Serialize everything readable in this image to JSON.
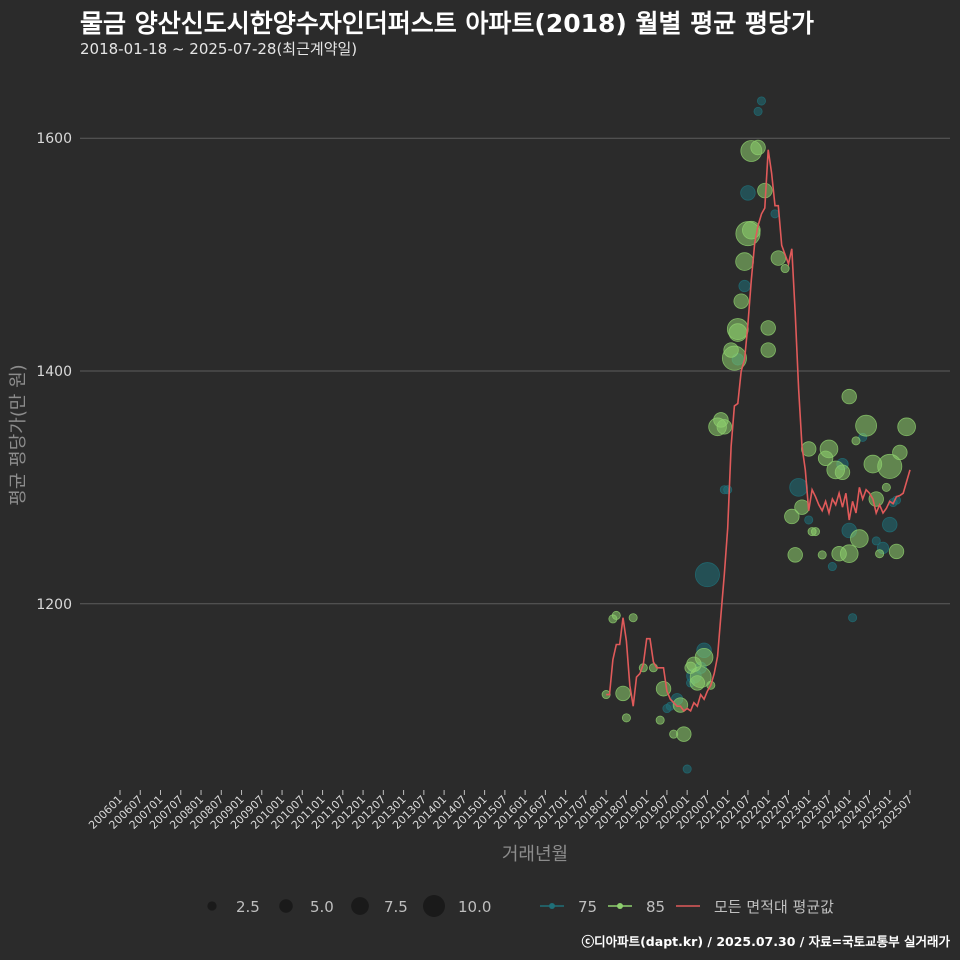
{
  "header": {
    "title": "물금 양산신도시한양수자인더퍼스트 아파트(2018) 월별 평균 평당가",
    "subtitle": "2018-01-18 ~ 2025-07-28(최근계약일)"
  },
  "caption": "ⓒ디아파트(dapt.kr) / 2025.07.30 / 자료=국토교통부 실거래가",
  "colors": {
    "background": "#2b2b2b",
    "grid": "#5c5c5c",
    "series_75": "#1f6f78",
    "series_85": "#8ecf6e",
    "average_line": "#e05a5a",
    "size_legend": "#1a1a1a"
  },
  "chart_data": {
    "type": "scatter",
    "xlabel": "거래년월",
    "ylabel": "평균 평당가(만 원)",
    "ylim": [
      1040,
      1650
    ],
    "yticks": [
      1200,
      1400,
      1600
    ],
    "grid": true,
    "legend_position": "bottom",
    "x_ticks": [
      "200601",
      "200607",
      "200701",
      "200707",
      "200801",
      "200807",
      "200901",
      "200907",
      "201001",
      "201007",
      "201101",
      "201107",
      "201201",
      "201207",
      "201301",
      "201307",
      "201401",
      "201407",
      "201501",
      "201507",
      "201601",
      "201607",
      "201701",
      "201707",
      "201801",
      "201807",
      "201901",
      "201907",
      "202001",
      "202007",
      "202101",
      "202107",
      "202201",
      "202207",
      "202301",
      "202307",
      "202401",
      "202407",
      "202501",
      "202507"
    ],
    "size_legend": {
      "labels": [
        "2.5",
        "5.0",
        "7.5",
        "10.0"
      ],
      "values": [
        2.5,
        5.0,
        7.5,
        10.0
      ]
    },
    "series": [
      {
        "name": "75",
        "type": "scatter",
        "points": [
          {
            "x": "2019-07",
            "y": 1110,
            "size": 1
          },
          {
            "x": "2019-08",
            "y": 1112,
            "size": 1
          },
          {
            "x": "2019-10",
            "y": 1118,
            "size": 2
          },
          {
            "x": "2020-01",
            "y": 1058,
            "size": 1
          },
          {
            "x": "2020-02",
            "y": 1132,
            "size": 1
          },
          {
            "x": "2020-03",
            "y": 1138,
            "size": 3
          },
          {
            "x": "2020-05",
            "y": 1145,
            "size": 2
          },
          {
            "x": "2020-06",
            "y": 1160,
            "size": 3
          },
          {
            "x": "2020-07",
            "y": 1225,
            "size": 6
          },
          {
            "x": "2020-12",
            "y": 1298,
            "size": 1
          },
          {
            "x": "2021-01",
            "y": 1298,
            "size": 1
          },
          {
            "x": "2021-04",
            "y": 1410,
            "size": 2
          },
          {
            "x": "2021-06",
            "y": 1473,
            "size": 2
          },
          {
            "x": "2021-07",
            "y": 1553,
            "size": 3
          },
          {
            "x": "2021-10",
            "y": 1623,
            "size": 1
          },
          {
            "x": "2021-11",
            "y": 1632,
            "size": 1
          },
          {
            "x": "2022-03",
            "y": 1535,
            "size": 1
          },
          {
            "x": "2022-10",
            "y": 1300,
            "size": 4
          },
          {
            "x": "2023-01",
            "y": 1272,
            "size": 1
          },
          {
            "x": "2023-08",
            "y": 1232,
            "size": 1
          },
          {
            "x": "2023-11",
            "y": 1320,
            "size": 2
          },
          {
            "x": "2024-01",
            "y": 1263,
            "size": 3
          },
          {
            "x": "2024-02",
            "y": 1188,
            "size": 1
          },
          {
            "x": "2024-05",
            "y": 1343,
            "size": 1
          },
          {
            "x": "2024-09",
            "y": 1254,
            "size": 1
          },
          {
            "x": "2024-11",
            "y": 1248,
            "size": 2
          },
          {
            "x": "2025-01",
            "y": 1268,
            "size": 3
          },
          {
            "x": "2025-02",
            "y": 1287,
            "size": 1
          },
          {
            "x": "2025-03",
            "y": 1289,
            "size": 1
          }
        ]
      },
      {
        "name": "85",
        "type": "scatter",
        "points": [
          {
            "x": "2018-01",
            "y": 1122,
            "size": 1
          },
          {
            "x": "2018-03",
            "y": 1187,
            "size": 1
          },
          {
            "x": "2018-04",
            "y": 1190,
            "size": 1
          },
          {
            "x": "2018-06",
            "y": 1123,
            "size": 3
          },
          {
            "x": "2018-07",
            "y": 1102,
            "size": 1
          },
          {
            "x": "2018-09",
            "y": 1188,
            "size": 1
          },
          {
            "x": "2018-12",
            "y": 1145,
            "size": 1
          },
          {
            "x": "2019-03",
            "y": 1145,
            "size": 1
          },
          {
            "x": "2019-05",
            "y": 1100,
            "size": 1
          },
          {
            "x": "2019-06",
            "y": 1127,
            "size": 3
          },
          {
            "x": "2019-09",
            "y": 1088,
            "size": 1
          },
          {
            "x": "2019-11",
            "y": 1113,
            "size": 3
          },
          {
            "x": "2019-12",
            "y": 1088,
            "size": 3
          },
          {
            "x": "2020-02",
            "y": 1145,
            "size": 2
          },
          {
            "x": "2020-03",
            "y": 1148,
            "size": 3
          },
          {
            "x": "2020-04",
            "y": 1132,
            "size": 3
          },
          {
            "x": "2020-05",
            "y": 1137,
            "size": 5
          },
          {
            "x": "2020-06",
            "y": 1154,
            "size": 4
          },
          {
            "x": "2020-08",
            "y": 1130,
            "size": 1
          },
          {
            "x": "2020-10",
            "y": 1352,
            "size": 4
          },
          {
            "x": "2020-11",
            "y": 1358,
            "size": 3
          },
          {
            "x": "2020-12",
            "y": 1352,
            "size": 3
          },
          {
            "x": "2021-02",
            "y": 1418,
            "size": 3
          },
          {
            "x": "2021-03",
            "y": 1411,
            "size": 6
          },
          {
            "x": "2021-04",
            "y": 1433,
            "size": 4
          },
          {
            "x": "2021-04",
            "y": 1436,
            "size": 5
          },
          {
            "x": "2021-05",
            "y": 1460,
            "size": 3
          },
          {
            "x": "2021-06",
            "y": 1494,
            "size": 4
          },
          {
            "x": "2021-07",
            "y": 1518,
            "size": 6
          },
          {
            "x": "2021-08",
            "y": 1521,
            "size": 4
          },
          {
            "x": "2021-08",
            "y": 1589,
            "size": 5
          },
          {
            "x": "2021-10",
            "y": 1592,
            "size": 3
          },
          {
            "x": "2021-12",
            "y": 1555,
            "size": 3
          },
          {
            "x": "2022-01",
            "y": 1418,
            "size": 3
          },
          {
            "x": "2022-01",
            "y": 1437,
            "size": 3
          },
          {
            "x": "2022-04",
            "y": 1497,
            "size": 3
          },
          {
            "x": "2022-06",
            "y": 1488,
            "size": 1
          },
          {
            "x": "2022-09",
            "y": 1242,
            "size": 3
          },
          {
            "x": "2022-08",
            "y": 1275,
            "size": 3
          },
          {
            "x": "2022-11",
            "y": 1283,
            "size": 3
          },
          {
            "x": "2023-01",
            "y": 1333,
            "size": 3
          },
          {
            "x": "2023-02",
            "y": 1262,
            "size": 1
          },
          {
            "x": "2023-03",
            "y": 1262,
            "size": 1
          },
          {
            "x": "2023-05",
            "y": 1242,
            "size": 1
          },
          {
            "x": "2023-06",
            "y": 1325,
            "size": 3
          },
          {
            "x": "2023-07",
            "y": 1333,
            "size": 4
          },
          {
            "x": "2023-09",
            "y": 1315,
            "size": 4
          },
          {
            "x": "2023-10",
            "y": 1243,
            "size": 3
          },
          {
            "x": "2023-11",
            "y": 1313,
            "size": 3
          },
          {
            "x": "2024-01",
            "y": 1378,
            "size": 3
          },
          {
            "x": "2024-01",
            "y": 1243,
            "size": 4
          },
          {
            "x": "2024-03",
            "y": 1340,
            "size": 1
          },
          {
            "x": "2024-04",
            "y": 1256,
            "size": 4
          },
          {
            "x": "2024-06",
            "y": 1353,
            "size": 5
          },
          {
            "x": "2024-08",
            "y": 1320,
            "size": 4
          },
          {
            "x": "2024-09",
            "y": 1290,
            "size": 3
          },
          {
            "x": "2024-10",
            "y": 1243,
            "size": 1
          },
          {
            "x": "2024-12",
            "y": 1300,
            "size": 1
          },
          {
            "x": "2025-01",
            "y": 1318,
            "size": 6
          },
          {
            "x": "2025-03",
            "y": 1245,
            "size": 3
          },
          {
            "x": "2025-04",
            "y": 1330,
            "size": 3
          },
          {
            "x": "2025-06",
            "y": 1352,
            "size": 4
          }
        ]
      },
      {
        "name": "모든 면적대 평균값",
        "type": "line",
        "points": [
          {
            "x": "2018-01",
            "y": 1122
          },
          {
            "x": "2018-02",
            "y": 1122
          },
          {
            "x": "2018-03",
            "y": 1152
          },
          {
            "x": "2018-04",
            "y": 1165
          },
          {
            "x": "2018-05",
            "y": 1165
          },
          {
            "x": "2018-06",
            "y": 1188
          },
          {
            "x": "2018-07",
            "y": 1168
          },
          {
            "x": "2018-08",
            "y": 1130
          },
          {
            "x": "2018-09",
            "y": 1112
          },
          {
            "x": "2018-10",
            "y": 1137
          },
          {
            "x": "2018-11",
            "y": 1140
          },
          {
            "x": "2018-12",
            "y": 1148
          },
          {
            "x": "2019-01",
            "y": 1170
          },
          {
            "x": "2019-02",
            "y": 1170
          },
          {
            "x": "2019-03",
            "y": 1150
          },
          {
            "x": "2019-04",
            "y": 1145
          },
          {
            "x": "2019-05",
            "y": 1145
          },
          {
            "x": "2019-06",
            "y": 1145
          },
          {
            "x": "2019-07",
            "y": 1125
          },
          {
            "x": "2019-08",
            "y": 1118
          },
          {
            "x": "2019-09",
            "y": 1115
          },
          {
            "x": "2019-10",
            "y": 1112
          },
          {
            "x": "2019-11",
            "y": 1112
          },
          {
            "x": "2019-12",
            "y": 1108
          },
          {
            "x": "2020-01",
            "y": 1110
          },
          {
            "x": "2020-02",
            "y": 1108
          },
          {
            "x": "2020-03",
            "y": 1115
          },
          {
            "x": "2020-04",
            "y": 1112
          },
          {
            "x": "2020-05",
            "y": 1122
          },
          {
            "x": "2020-06",
            "y": 1118
          },
          {
            "x": "2020-07",
            "y": 1125
          },
          {
            "x": "2020-08",
            "y": 1130
          },
          {
            "x": "2020-09",
            "y": 1140
          },
          {
            "x": "2020-10",
            "y": 1155
          },
          {
            "x": "2020-11",
            "y": 1190
          },
          {
            "x": "2020-12",
            "y": 1225
          },
          {
            "x": "2021-01",
            "y": 1265
          },
          {
            "x": "2021-02",
            "y": 1335
          },
          {
            "x": "2021-03",
            "y": 1370
          },
          {
            "x": "2021-04",
            "y": 1372
          },
          {
            "x": "2021-05",
            "y": 1400
          },
          {
            "x": "2021-06",
            "y": 1410
          },
          {
            "x": "2021-07",
            "y": 1440
          },
          {
            "x": "2021-08",
            "y": 1478
          },
          {
            "x": "2021-09",
            "y": 1510
          },
          {
            "x": "2021-10",
            "y": 1525
          },
          {
            "x": "2021-11",
            "y": 1535
          },
          {
            "x": "2021-12",
            "y": 1540
          },
          {
            "x": "2022-01",
            "y": 1590
          },
          {
            "x": "2022-02",
            "y": 1570
          },
          {
            "x": "2022-03",
            "y": 1542
          },
          {
            "x": "2022-04",
            "y": 1542
          },
          {
            "x": "2022-05",
            "y": 1508
          },
          {
            "x": "2022-06",
            "y": 1500
          },
          {
            "x": "2022-07",
            "y": 1492
          },
          {
            "x": "2022-08",
            "y": 1505
          },
          {
            "x": "2022-09",
            "y": 1450
          },
          {
            "x": "2022-10",
            "y": 1385
          },
          {
            "x": "2022-11",
            "y": 1335
          },
          {
            "x": "2022-12",
            "y": 1315
          },
          {
            "x": "2023-01",
            "y": 1280
          },
          {
            "x": "2023-02",
            "y": 1298
          },
          {
            "x": "2023-03",
            "y": 1292
          },
          {
            "x": "2023-04",
            "y": 1285
          },
          {
            "x": "2023-05",
            "y": 1280
          },
          {
            "x": "2023-06",
            "y": 1288
          },
          {
            "x": "2023-07",
            "y": 1278
          },
          {
            "x": "2023-08",
            "y": 1290
          },
          {
            "x": "2023-09",
            "y": 1285
          },
          {
            "x": "2023-10",
            "y": 1295
          },
          {
            "x": "2023-11",
            "y": 1283
          },
          {
            "x": "2023-12",
            "y": 1295
          },
          {
            "x": "2024-01",
            "y": 1272
          },
          {
            "x": "2024-02",
            "y": 1288
          },
          {
            "x": "2024-03",
            "y": 1278
          },
          {
            "x": "2024-04",
            "y": 1300
          },
          {
            "x": "2024-05",
            "y": 1290
          },
          {
            "x": "2024-06",
            "y": 1298
          },
          {
            "x": "2024-07",
            "y": 1295
          },
          {
            "x": "2024-08",
            "y": 1290
          },
          {
            "x": "2024-09",
            "y": 1278
          },
          {
            "x": "2024-10",
            "y": 1285
          },
          {
            "x": "2024-11",
            "y": 1278
          },
          {
            "x": "2024-12",
            "y": 1282
          },
          {
            "x": "2025-01",
            "y": 1288
          },
          {
            "x": "2025-02",
            "y": 1286
          },
          {
            "x": "2025-03",
            "y": 1292
          },
          {
            "x": "2025-04",
            "y": 1293
          },
          {
            "x": "2025-05",
            "y": 1295
          },
          {
            "x": "2025-06",
            "y": 1305
          },
          {
            "x": "2025-07",
            "y": 1315
          }
        ]
      }
    ]
  }
}
